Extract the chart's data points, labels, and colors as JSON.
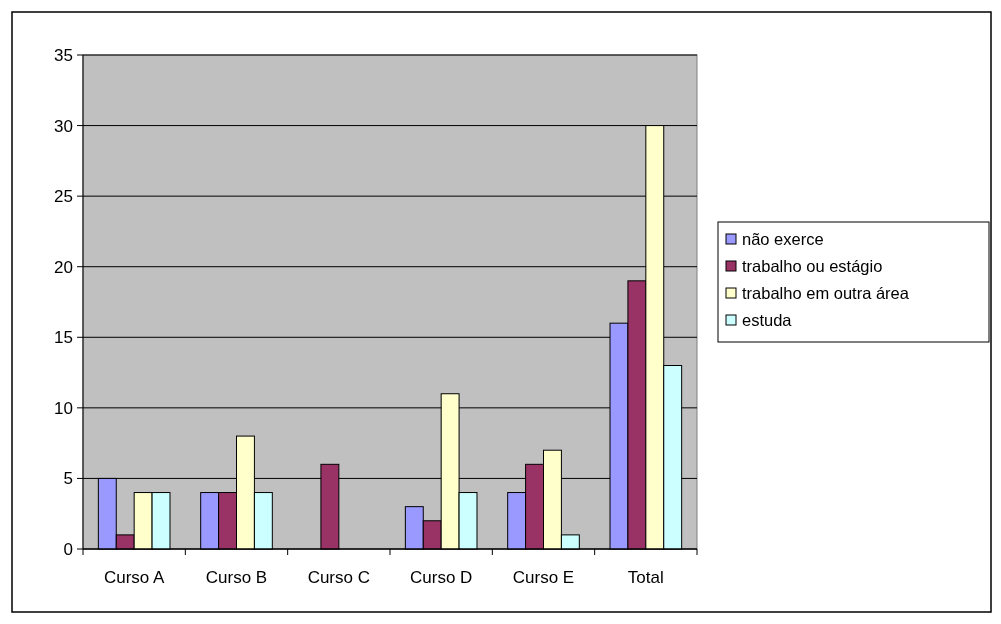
{
  "chart_data": {
    "type": "bar",
    "categories": [
      "Curso A",
      "Curso B",
      "Curso C",
      "Curso D",
      "Curso E",
      "Total"
    ],
    "series": [
      {
        "name": "não exerce",
        "color": "#9999ff",
        "values": [
          5,
          4,
          0,
          3,
          4,
          16
        ]
      },
      {
        "name": "trabalho ou estágio",
        "color": "#993366",
        "values": [
          1,
          4,
          6,
          2,
          6,
          19
        ]
      },
      {
        "name": "trabalho em outra área",
        "color": "#ffffcc",
        "values": [
          4,
          8,
          0,
          11,
          7,
          30
        ]
      },
      {
        "name": "estuda",
        "color": "#ccffff",
        "values": [
          4,
          4,
          0,
          4,
          1,
          13
        ]
      }
    ],
    "ylim": [
      0,
      35
    ],
    "yticks": [
      0,
      5,
      10,
      15,
      20,
      25,
      30,
      35
    ],
    "grid": "y",
    "legend": "right"
  }
}
